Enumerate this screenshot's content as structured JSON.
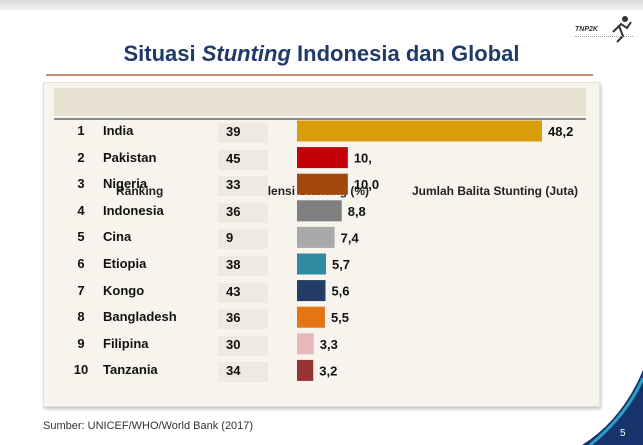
{
  "title": {
    "pre": "Situasi ",
    "italic": "Stunting",
    "post": " Indonesia dan Global"
  },
  "logo": {
    "text": "TNP2K"
  },
  "columns": {
    "rank": "Ranking",
    "prevalence": "Prevalensi Stunting (%)",
    "count": "Jumlah Balita Stunting (Juta)"
  },
  "chart_data": {
    "type": "bar",
    "orientation": "horizontal",
    "categories": [
      "India",
      "Pakistan",
      "Nigeria",
      "Indonesia",
      "Cina",
      "Etiopia",
      "Kongo",
      "Bangladesh",
      "Filipina",
      "Tanzania"
    ],
    "ranks": [
      "1",
      "2",
      "3",
      "4",
      "5",
      "6",
      "7",
      "8",
      "9",
      "10"
    ],
    "prevalence": [
      "39",
      "45",
      "33",
      "36",
      "9",
      "38",
      "43",
      "36",
      "30",
      "34"
    ],
    "values": [
      48.2,
      10.0,
      10.0,
      8.8,
      7.4,
      5.7,
      5.6,
      5.5,
      3.3,
      3.2
    ],
    "value_labels": [
      "48,2",
      "10,",
      "10,0",
      "8,8",
      "7,4",
      "5,7",
      "5,6",
      "5,5",
      "3,3",
      "3,2"
    ],
    "colors": [
      "#d89e0a",
      "#c4000a",
      "#a2480c",
      "#7f7f7f",
      "#a9a9a9",
      "#2e8aa0",
      "#243c66",
      "#e57412",
      "#e6b8b8",
      "#993333"
    ],
    "xlim": [
      0,
      48.2
    ]
  },
  "footer": "Sumber: UNICEF/WHO/World Bank (2017)",
  "page_number": "5",
  "accent": "#1f3a6b"
}
